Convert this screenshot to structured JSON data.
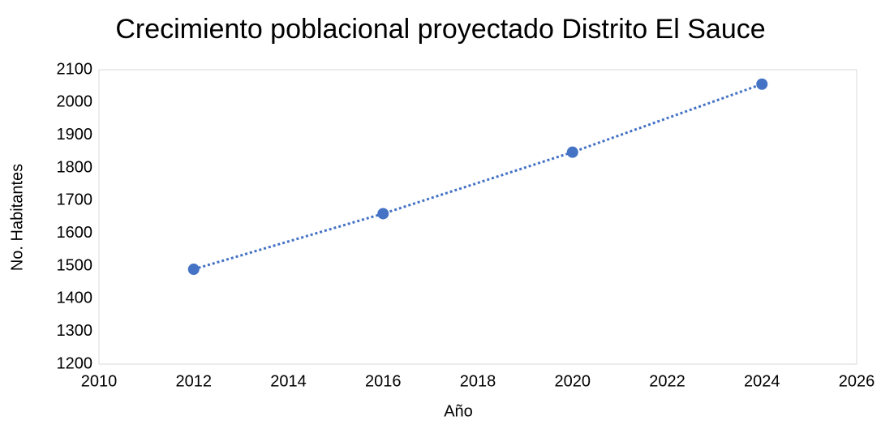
{
  "chart_data": {
    "type": "scatter",
    "title": "Crecimiento poblacional proyectado Distrito El Sauce",
    "xlabel": "Año",
    "ylabel": "No. Habitantes",
    "x": [
      2012,
      2016,
      2020,
      2024
    ],
    "values": [
      1490,
      1660,
      1848,
      2056
    ],
    "color": "#4472c4",
    "line_style": "dotted",
    "xlim": [
      2010,
      2026
    ],
    "xticks": [
      2010,
      2012,
      2014,
      2016,
      2018,
      2020,
      2022,
      2024,
      2026
    ],
    "ylim": [
      1200,
      2100
    ],
    "yticks": [
      1200,
      1300,
      1400,
      1500,
      1600,
      1700,
      1800,
      1900,
      2000,
      2100
    ],
    "grid": false
  }
}
